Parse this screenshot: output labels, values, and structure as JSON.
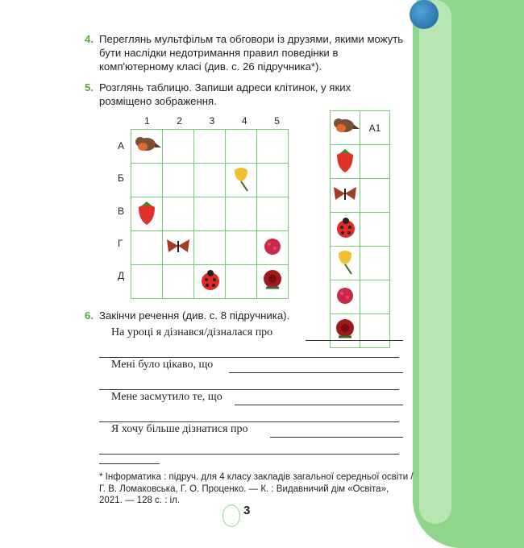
{
  "task4": {
    "number": "4.",
    "text": "Переглянь мультфільм та обговори із друзями, якими можуть бути наслідки недотримання правил поведінки в комп'ютерному класі (див. с. 26 підручника*)."
  },
  "task5": {
    "number": "5.",
    "text": "Розглянь таблицю. Запиши адреси клітинок, у яких розміщено зображення.",
    "columns": [
      "1",
      "2",
      "3",
      "4",
      "5"
    ],
    "rows": [
      "А",
      "Б",
      "В",
      "Г",
      "Д"
    ],
    "placements": [
      {
        "cell": "А1",
        "icon": "bird"
      },
      {
        "cell": "Б4",
        "icon": "flower"
      },
      {
        "cell": "В1",
        "icon": "strawberry"
      },
      {
        "cell": "Г2",
        "icon": "butterfly"
      },
      {
        "cell": "Г5",
        "icon": "raspberry"
      },
      {
        "cell": "Д3",
        "icon": "ladybug"
      },
      {
        "cell": "Д5",
        "icon": "rose"
      }
    ],
    "answers": [
      {
        "icon": "bird",
        "value": "А1"
      },
      {
        "icon": "strawberry",
        "value": ""
      },
      {
        "icon": "butterfly",
        "value": ""
      },
      {
        "icon": "ladybug",
        "value": ""
      },
      {
        "icon": "flower",
        "value": ""
      },
      {
        "icon": "raspberry",
        "value": ""
      },
      {
        "icon": "rose",
        "value": ""
      }
    ]
  },
  "task6": {
    "number": "6.",
    "text": "Закінчи речення (див. с. 8 підручника).",
    "sentences": [
      "На уроці я дізнався/дізналася про",
      "Мені було цікаво, що",
      "Мене засмутило те, що",
      "Я хочу більше дізнатися про"
    ]
  },
  "footnote": "* Інформатика : підруч. для 4 класу закладів загальної середньої освіти / Г. В. Ломаковська, Г. О. Проценко. — К. : Видавничий дім «Освіта», 2021. — 128 с. : іл.",
  "page_number": "3"
}
